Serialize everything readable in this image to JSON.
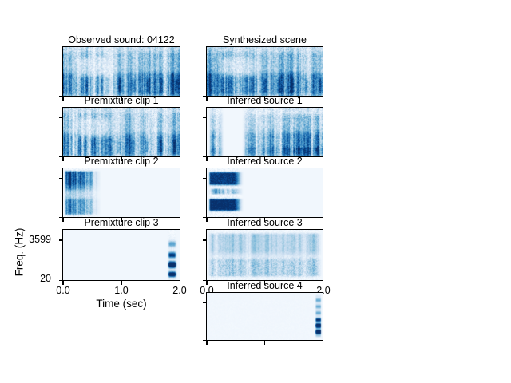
{
  "chart_data": {
    "type": "heatmap",
    "subtype": "spectrogram-grid",
    "xlabel": "Time (sec)",
    "ylabel": "Freq. (Hz)",
    "x_range_sec": [
      0.0,
      2.0
    ],
    "y_range_hz": [
      20,
      3599
    ],
    "xtick_labels_left": [
      "0.0",
      "1.0",
      "2.0"
    ],
    "xtick_labels_right": [
      "0.0",
      "2.0"
    ],
    "ytick_labels": [
      "3599",
      "20"
    ],
    "colormap": "Blues",
    "sound_id": "04122",
    "panels": [
      {
        "title": "Observed sound: 04122",
        "pattern": "dense_mix",
        "seed": 3,
        "grid": {
          "col": 0,
          "row": 0
        },
        "content": "Dense broadband energy across full 0-2 s, strongest toward low frequencies, periodic dark blobs after ~0.8 s"
      },
      {
        "title": "Synthesized scene",
        "pattern": "dense_mix",
        "seed": 11,
        "grid": {
          "col": 1,
          "row": 0
        },
        "content": "Dense broadband energy across full 0-2 s closely matching the observed mixture"
      },
      {
        "title": "Premixture clip 1",
        "pattern": "dense_mix",
        "seed": 7,
        "grid": {
          "col": 0,
          "row": 1
        },
        "content": "Continuous broadband background texture across full 0-2 s"
      },
      {
        "title": "Inferred source 1",
        "pattern": "gapped_dense",
        "seed": 21,
        "grid": {
          "col": 1,
          "row": 1
        },
        "content": "Short burst ~0.05-0.25 s, silent gap, then dense broadband energy from ~0.65 s to 2 s"
      },
      {
        "title": "Premixture clip 2",
        "pattern": "left_burst",
        "seed": 31,
        "grid": {
          "col": 0,
          "row": 2
        },
        "content": "Energy concentrated in first ~0.5 s (strong upper patch and lower tail), silent afterwards"
      },
      {
        "title": "Inferred source 2",
        "pattern": "left_bands",
        "seed": 41,
        "grid": {
          "col": 1,
          "row": 2
        },
        "content": "Horizontally banded energy in first ~0.6 s, silent afterwards"
      },
      {
        "title": "Premixture clip 3",
        "pattern": "right_burst",
        "seed": 51,
        "grid": {
          "col": 0,
          "row": 3
        },
        "content": "Silent until a narrow banded broadband burst at ~1.85-1.95 s"
      },
      {
        "title": "Inferred source 3",
        "pattern": "pale_dense",
        "seed": 61,
        "grid": {
          "col": 1,
          "row": 3
        },
        "content": "Faint diffuse energy across full 0-2 s with soft horizontal banding"
      },
      {
        "title": "Inferred source 4",
        "pattern": "right_stripes",
        "seed": 71,
        "grid": {
          "col": 1,
          "row": 4
        },
        "content": "Silent until a narrow harmonic-striped burst at ~1.9-2.0 s, strongest at low frequencies"
      }
    ]
  },
  "colors": {
    "figure_background": "#ffffff",
    "panel_background": "#f7fbff",
    "spine": "#000000",
    "text": "#000000",
    "colormap_stops": [
      "#f7fbff",
      "#deebf7",
      "#c6dbef",
      "#9ecae1",
      "#6baed6",
      "#4292c6",
      "#2171b5",
      "#08519c",
      "#08306b"
    ]
  }
}
